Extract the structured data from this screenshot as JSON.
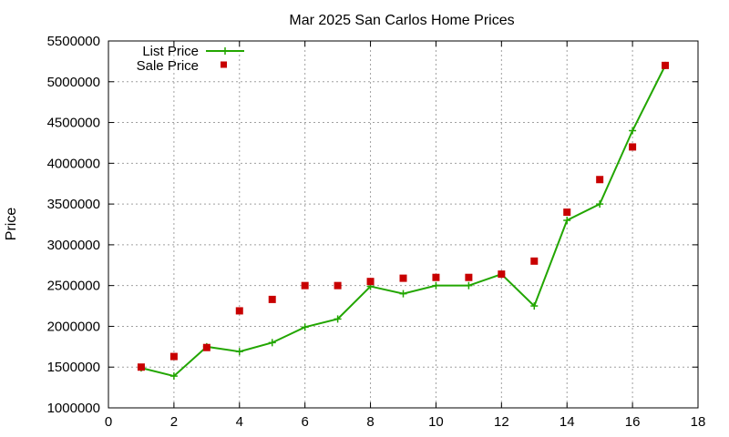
{
  "chart_data": {
    "type": "line",
    "title": "Mar 2025 San Carlos Home Prices",
    "xlabel": "",
    "ylabel": "Price",
    "xlim": [
      0,
      18
    ],
    "ylim": [
      1000000,
      5500000
    ],
    "xticks": [
      0,
      2,
      4,
      6,
      8,
      10,
      12,
      14,
      16,
      18
    ],
    "yticks": [
      1000000,
      1500000,
      2000000,
      2500000,
      3000000,
      3500000,
      4000000,
      4500000,
      5000000,
      5500000
    ],
    "grid": true,
    "legend_position": "top-left",
    "series": [
      {
        "name": "List Price",
        "style": "line-with-plus-markers",
        "color": "#22a600",
        "x": [
          1,
          2,
          3,
          4,
          5,
          6,
          7,
          8,
          9,
          10,
          11,
          12,
          13,
          14,
          15,
          16,
          17
        ],
        "y": [
          1490000,
          1390000,
          1750000,
          1690000,
          1800000,
          1990000,
          2090000,
          2490000,
          2400000,
          2500000,
          2500000,
          2640000,
          2250000,
          3300000,
          3500000,
          4400000,
          5200000
        ]
      },
      {
        "name": "Sale Price",
        "style": "square-markers",
        "color": "#c80000",
        "x": [
          1,
          2,
          3,
          4,
          5,
          6,
          7,
          8,
          9,
          10,
          11,
          12,
          13,
          14,
          15,
          16,
          17
        ],
        "y": [
          1500000,
          1630000,
          1740000,
          2190000,
          2330000,
          2500000,
          2500000,
          2550000,
          2590000,
          2600000,
          2600000,
          2640000,
          2800000,
          3400000,
          3800000,
          4200000,
          5200000
        ]
      }
    ]
  }
}
